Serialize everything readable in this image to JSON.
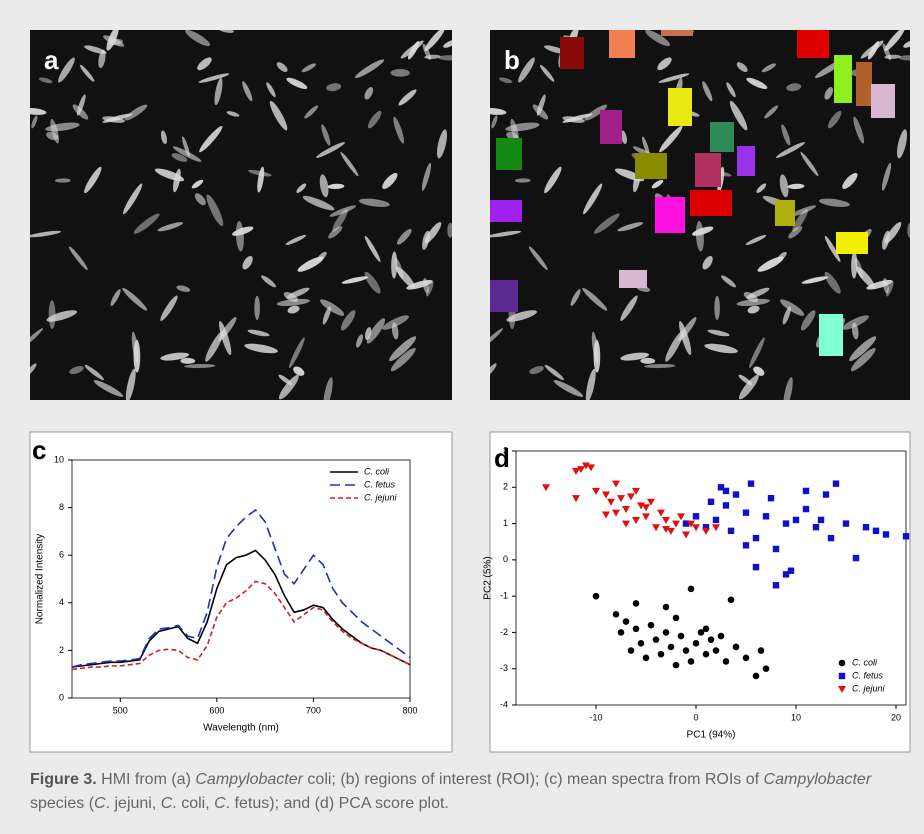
{
  "panels": [
    "a",
    "b",
    "c",
    "d"
  ],
  "caption": [
    {
      "text": "Figure 3.",
      "style": "bold"
    },
    {
      "text": " HMI from (a) ",
      "style": "normal"
    },
    {
      "text": "Campylobacter",
      "style": "italic"
    },
    {
      "text": " coli; (b) regions of interest (ROI); (c) mean spectra from ROIs of ",
      "style": "normal"
    },
    {
      "text": "Campylobacter",
      "style": "italic"
    },
    {
      "text": " species (",
      "style": "normal"
    },
    {
      "text": "C",
      "style": "italic"
    },
    {
      "text": ". jejuni, ",
      "style": "normal"
    },
    {
      "text": "C",
      "style": "italic"
    },
    {
      "text": ". coli, ",
      "style": "normal"
    },
    {
      "text": "C",
      "style": "italic"
    },
    {
      "text": ". fetus); and (d) PCA score plot.",
      "style": "normal"
    }
  ],
  "chart_data": [
    {
      "type": "line",
      "x_label": "Wavelength (nm)",
      "y_label": "Normalized Intensity",
      "x": [
        450,
        460,
        470,
        480,
        490,
        500,
        510,
        520,
        530,
        540,
        550,
        560,
        570,
        580,
        590,
        600,
        610,
        620,
        630,
        640,
        650,
        660,
        670,
        680,
        690,
        700,
        710,
        720,
        730,
        740,
        750,
        760,
        770,
        780,
        790,
        800
      ],
      "xlim": [
        450,
        800
      ],
      "xticks": [
        500,
        600,
        700,
        800
      ],
      "ylim": [
        0,
        10
      ],
      "yticks": [
        0,
        2,
        4,
        6,
        8,
        10
      ],
      "legend": "upper right",
      "series": [
        {
          "name": "C. coli",
          "color": "#000000",
          "dash": "solid",
          "values": [
            1.3,
            1.35,
            1.4,
            1.45,
            1.5,
            1.5,
            1.55,
            1.6,
            2.4,
            2.8,
            2.9,
            3.0,
            2.5,
            2.3,
            3.2,
            4.6,
            5.6,
            5.9,
            6.0,
            6.2,
            5.8,
            5.2,
            4.3,
            3.6,
            3.7,
            3.9,
            3.8,
            3.3,
            2.9,
            2.6,
            2.3,
            2.1,
            2.0,
            1.8,
            1.6,
            1.4
          ]
        },
        {
          "name": "C. fetus",
          "color": "#1f2fb8",
          "dash": "long",
          "values": [
            1.3,
            1.4,
            1.45,
            1.5,
            1.55,
            1.55,
            1.6,
            1.65,
            2.5,
            2.9,
            2.95,
            3.05,
            2.6,
            2.5,
            3.6,
            5.5,
            6.7,
            7.2,
            7.6,
            7.9,
            7.4,
            6.3,
            5.2,
            4.8,
            5.4,
            6.0,
            5.6,
            4.6,
            4.0,
            3.6,
            3.2,
            2.9,
            2.6,
            2.3,
            2.0,
            1.7
          ]
        },
        {
          "name": "C. jejuni",
          "color": "#cc2222",
          "dash": "short",
          "values": [
            1.2,
            1.25,
            1.3,
            1.3,
            1.35,
            1.35,
            1.4,
            1.45,
            1.8,
            2.0,
            2.05,
            2.0,
            1.7,
            1.6,
            2.2,
            3.4,
            4.0,
            4.2,
            4.5,
            4.9,
            4.8,
            4.4,
            3.8,
            3.2,
            3.5,
            3.8,
            3.7,
            3.2,
            2.8,
            2.5,
            2.3,
            2.1,
            2.0,
            1.8,
            1.6,
            1.4
          ]
        }
      ]
    },
    {
      "type": "scatter",
      "x_label": "PC1 (94%)",
      "y_label": "PC2 (5%)",
      "xlim": [
        -18,
        21
      ],
      "xticks": [
        -10,
        0,
        10,
        20
      ],
      "ylim": [
        -4,
        3
      ],
      "yticks": [
        -4,
        -3,
        -2,
        -1,
        0,
        1,
        2,
        3
      ],
      "legend": "lower right",
      "series": [
        {
          "name": "C. coli",
          "color": "#000000",
          "marker": "circle",
          "x": [
            -10,
            -8,
            -7.5,
            -7,
            -6.5,
            -6,
            -5.5,
            -5,
            -4.5,
            -4,
            -3.5,
            -3,
            -2.5,
            -2,
            -1.5,
            -1,
            -0.5,
            0,
            0.5,
            1,
            1.5,
            2,
            2.5,
            3,
            4,
            5,
            6,
            6.5,
            7,
            -0.5,
            3.5,
            -3,
            -6,
            -2,
            1
          ],
          "values": [
            -1.0,
            -1.5,
            -2.0,
            -1.7,
            -2.5,
            -1.9,
            -2.3,
            -2.7,
            -1.8,
            -2.2,
            -2.6,
            -2.0,
            -2.4,
            -2.9,
            -2.1,
            -2.5,
            -2.8,
            -2.3,
            -2.0,
            -2.6,
            -2.2,
            -2.5,
            -2.1,
            -2.8,
            -2.4,
            -2.7,
            -3.2,
            -2.5,
            -3.0,
            -0.8,
            -1.1,
            -1.3,
            -1.2,
            -1.6,
            -1.9
          ]
        },
        {
          "name": "C. fetus",
          "color": "#1010cc",
          "marker": "square",
          "x": [
            -1,
            0,
            1,
            1.5,
            2,
            3,
            3.5,
            4,
            5,
            5.5,
            6,
            7,
            7.5,
            8,
            9,
            9.5,
            10,
            11,
            12,
            13,
            13.5,
            14,
            15,
            16,
            17,
            18,
            19,
            21,
            6,
            8,
            5,
            9,
            3,
            11,
            12.5,
            2.5
          ],
          "values": [
            1.0,
            1.2,
            0.9,
            1.6,
            1.1,
            1.5,
            0.8,
            1.8,
            1.3,
            2.1,
            0.6,
            1.2,
            1.7,
            0.3,
            1.0,
            -0.3,
            1.1,
            1.9,
            0.9,
            1.8,
            0.6,
            2.1,
            1.0,
            0.05,
            0.9,
            0.8,
            0.7,
            0.65,
            -0.2,
            -0.7,
            0.4,
            -0.4,
            1.9,
            1.4,
            1.1,
            2.0
          ]
        },
        {
          "name": "C. jejuni",
          "color": "#dd1111",
          "marker": "triangle-down",
          "x": [
            -15,
            -12,
            -11.5,
            -11,
            -10.5,
            -12,
            -10,
            -9,
            -8.5,
            -8,
            -7.5,
            -7,
            -6.5,
            -6,
            -5.5,
            -5,
            -4.5,
            -4,
            -3.5,
            -3,
            -2.5,
            -2,
            -1.5,
            -1,
            -0.5,
            0,
            1,
            2,
            -9,
            -7,
            -5,
            -3,
            -8,
            -6
          ],
          "values": [
            2.0,
            2.45,
            2.5,
            2.6,
            2.55,
            1.7,
            1.9,
            1.8,
            1.6,
            1.3,
            1.7,
            1.4,
            1.75,
            1.1,
            1.5,
            1.2,
            1.6,
            0.9,
            1.3,
            1.1,
            0.8,
            1.0,
            1.2,
            0.7,
            1.0,
            0.9,
            0.8,
            0.9,
            1.25,
            1.0,
            1.45,
            0.85,
            2.1,
            1.9
          ]
        }
      ]
    }
  ]
}
